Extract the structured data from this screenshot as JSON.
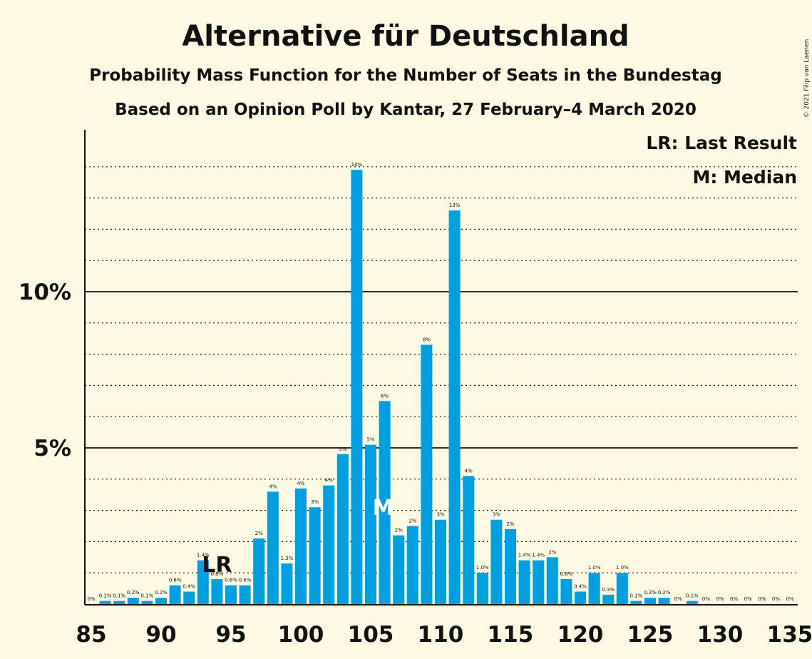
{
  "chart_data": {
    "type": "bar",
    "title": "Alternative für Deutschland",
    "subtitle": "Probability Mass Function for the Number of Seats in the Bundestag",
    "subtitle2": "Based on an Opinion Poll by Kantar, 27 February–4 March 2020",
    "copyright": "© 2021 Filip van Laenen",
    "legend": [
      "LR: Last Result",
      "M: Median"
    ],
    "last_result_label": "LR",
    "median_label": "M",
    "last_result_seat": 94,
    "median_seat": 106,
    "bar_color": "#00a0e0",
    "x_ticks": [
      85,
      90,
      95,
      100,
      105,
      110,
      115,
      120,
      125,
      130,
      135
    ],
    "y_ticks": [
      {
        "value": 5,
        "label": "5%"
      },
      {
        "value": 10,
        "label": "10%"
      }
    ],
    "ylim": [
      0,
      15.2
    ],
    "xlim": [
      85,
      135
    ],
    "grid": "dotted every 1%",
    "x": [
      85,
      86,
      87,
      88,
      89,
      90,
      91,
      92,
      93,
      94,
      95,
      96,
      97,
      98,
      99,
      100,
      101,
      102,
      103,
      104,
      105,
      106,
      107,
      108,
      109,
      110,
      111,
      112,
      113,
      114,
      115,
      116,
      117,
      118,
      119,
      120,
      121,
      122,
      123,
      124,
      125,
      126,
      127,
      128,
      129,
      130,
      131,
      132,
      133,
      134,
      135
    ],
    "values": [
      0,
      0.1,
      0.1,
      0.2,
      0.1,
      0.2,
      0.6,
      0.4,
      1.4,
      0.8,
      0.6,
      0.6,
      2.1,
      3.6,
      1.3,
      3.7,
      3.1,
      3.8,
      4.8,
      13.9,
      5.1,
      6.5,
      2.2,
      2.5,
      8.3,
      2.7,
      12.6,
      4.1,
      1.0,
      2.7,
      2.4,
      1.4,
      1.4,
      1.5,
      0.8,
      0.4,
      1.0,
      0.3,
      1.0,
      0.1,
      0.2,
      0.2,
      0,
      0.1,
      0,
      0,
      0,
      0,
      0,
      0,
      0
    ],
    "labels": [
      "0%",
      "0.1%",
      "0.1%",
      "0.2%",
      "0.1%",
      "0.2%",
      "0.6%",
      "0.4%",
      "1.4%",
      "0.8%",
      "0.6%",
      "0.6%",
      "2%",
      "4%",
      "1.3%",
      "4%",
      "3%",
      "4%",
      "5%",
      "14%",
      "5%",
      "6%",
      "2%",
      "2%",
      "8%",
      "3%",
      "13%",
      "4%",
      "1.0%",
      "3%",
      "2%",
      "1.4%",
      "1.4%",
      "2%",
      "0.8%",
      "0.4%",
      "1.0%",
      "0.3%",
      "1.0%",
      "0.1%",
      "0.2%",
      "0.2%",
      "0%",
      "0.1%",
      "0%",
      "0%",
      "0%",
      "0%",
      "0%",
      "0%",
      "0%"
    ]
  }
}
